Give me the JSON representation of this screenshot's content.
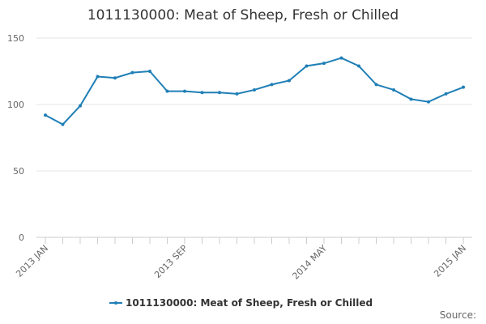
{
  "chart_data": {
    "type": "line",
    "title": "1011130000: Meat of Sheep, Fresh or Chilled",
    "categories": [
      "2013 JAN",
      null,
      null,
      null,
      null,
      null,
      null,
      null,
      "2013 SEP",
      null,
      null,
      null,
      null,
      null,
      null,
      null,
      "2014 MAY",
      null,
      null,
      null,
      null,
      null,
      null,
      null,
      "2015 JAN"
    ],
    "series": [
      {
        "name": "1011130000: Meat of Sheep, Fresh or Chilled",
        "color": "#1f7fb6",
        "values": [
          92,
          85,
          99,
          121,
          120,
          124,
          125,
          110,
          110,
          109,
          109,
          108,
          111,
          115,
          118,
          129,
          131,
          135,
          129,
          115,
          111,
          104,
          102,
          108,
          113
        ]
      }
    ],
    "ylim": [
      0,
      150
    ],
    "yticks": [
      0,
      50,
      100,
      150
    ],
    "grid": true,
    "source": "Source:"
  }
}
